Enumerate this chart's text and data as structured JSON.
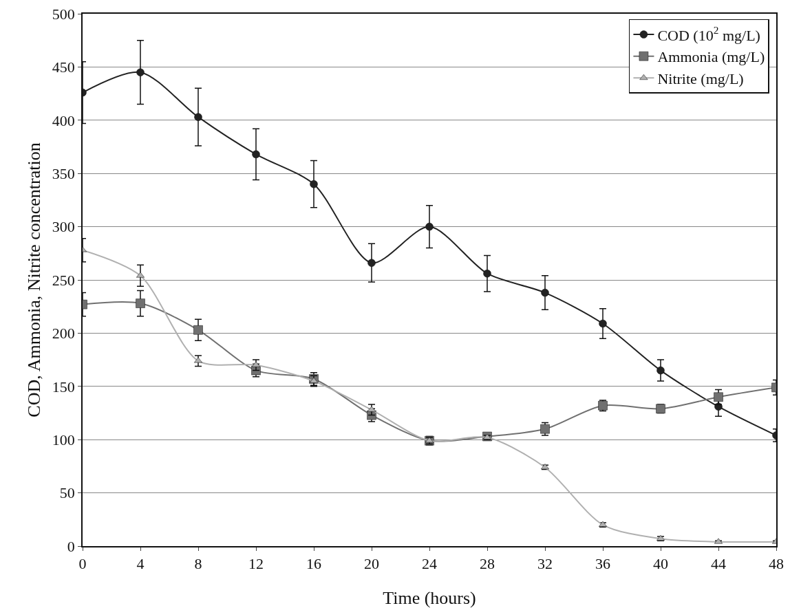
{
  "chart_data": {
    "type": "line",
    "xlabel": "Time (hours)",
    "ylabel": "COD, Ammonia, Nitrite concentration",
    "x": [
      0,
      4,
      8,
      12,
      16,
      20,
      24,
      28,
      32,
      36,
      40,
      44,
      48
    ],
    "xlim": [
      0,
      48
    ],
    "xticks": [
      0,
      4,
      8,
      12,
      16,
      20,
      24,
      28,
      32,
      36,
      40,
      44,
      48
    ],
    "ylim": [
      0,
      500
    ],
    "yticks": [
      0,
      50,
      100,
      150,
      200,
      250,
      300,
      350,
      400,
      450,
      500
    ],
    "grid": "y",
    "legend": "top right",
    "line_style": "solid",
    "series": [
      {
        "name": "COD (10$^{2}$ mg/L)",
        "color": "#222222",
        "marker": "circle",
        "values": [
          426,
          445,
          403,
          368,
          340,
          266,
          300,
          256,
          238,
          209,
          165,
          131,
          104
        ],
        "errors": [
          29,
          30,
          27,
          24,
          22,
          18,
          20,
          17,
          16,
          14,
          10,
          9,
          6
        ]
      },
      {
        "name": "Ammonia (mg/L)",
        "color": "#707070",
        "marker": "square",
        "values": [
          227,
          228,
          203,
          165,
          157,
          123,
          99,
          103,
          110,
          132,
          129,
          140,
          149
        ],
        "errors": [
          11,
          12,
          10,
          6,
          6,
          6,
          4,
          3,
          6,
          5,
          4,
          7,
          7
        ]
      },
      {
        "name": "Nitrite (mg/L)",
        "color": "#b0b0b0",
        "marker": "triangle",
        "values": [
          278,
          254,
          174,
          170,
          155,
          128,
          99,
          102,
          74,
          20,
          7,
          4,
          4
        ],
        "errors": [
          11,
          10,
          5,
          5,
          5,
          5,
          3,
          2,
          2,
          2,
          2,
          1,
          1
        ]
      }
    ]
  }
}
